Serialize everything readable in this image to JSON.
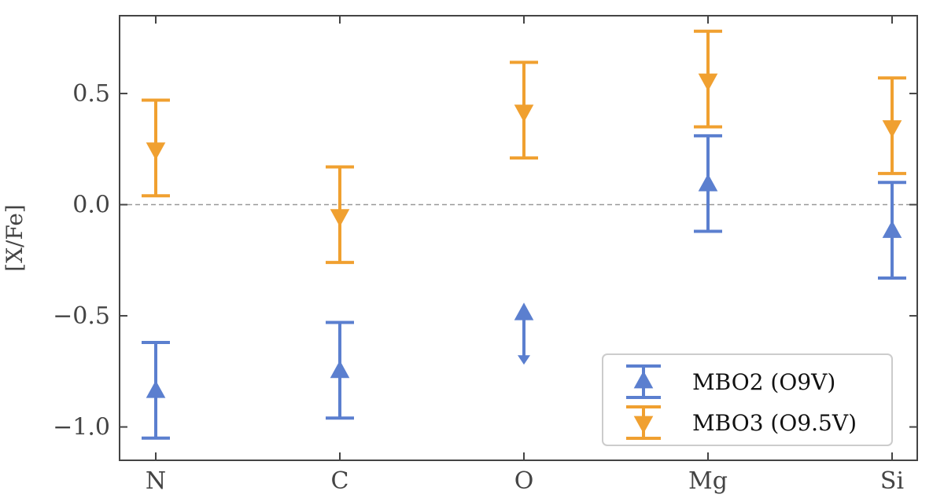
{
  "chart_data": {
    "type": "scatter",
    "title": "",
    "xlabel": "",
    "ylabel": "[X/Fe]",
    "categories": [
      "N",
      "C",
      "O",
      "Mg",
      "Si"
    ],
    "ylim": [
      -1.15,
      0.85
    ],
    "yticks": [
      {
        "value": 0.5,
        "label": "0.5"
      },
      {
        "value": 0.0,
        "label": "0.0"
      },
      {
        "value": -0.5,
        "label": "−0.5"
      },
      {
        "value": -1.0,
        "label": "−1.0"
      }
    ],
    "reference_line": {
      "y": 0.0,
      "style": "dashed"
    },
    "grid": false,
    "legend_position": "bottom-right",
    "series": [
      {
        "name": "MBO2 (O9V)",
        "color": "#5b7fcf",
        "marker": "triangle-up",
        "points": [
          {
            "category": "N",
            "y": -0.84,
            "y_low": -1.05,
            "y_high": -0.62
          },
          {
            "category": "C",
            "y": -0.75,
            "y_low": -0.96,
            "y_high": -0.53
          },
          {
            "category": "O",
            "y": -0.49,
            "lower_limit": true,
            "arrow_to": -0.72
          },
          {
            "category": "Mg",
            "y": 0.09,
            "y_low": -0.12,
            "y_high": 0.31
          },
          {
            "category": "Si",
            "y": -0.12,
            "y_low": -0.33,
            "y_high": 0.1
          }
        ]
      },
      {
        "name": "MBO3 (O9.5V)",
        "color": "#f0a030",
        "marker": "triangle-down",
        "points": [
          {
            "category": "N",
            "y": 0.25,
            "y_low": 0.04,
            "y_high": 0.47
          },
          {
            "category": "C",
            "y": -0.05,
            "y_low": -0.26,
            "y_high": 0.17
          },
          {
            "category": "O",
            "y": 0.42,
            "y_low": 0.21,
            "y_high": 0.64
          },
          {
            "category": "Mg",
            "y": 0.56,
            "y_low": 0.35,
            "y_high": 0.78
          },
          {
            "category": "Si",
            "y": 0.35,
            "y_low": 0.14,
            "y_high": 0.57
          }
        ]
      }
    ]
  }
}
